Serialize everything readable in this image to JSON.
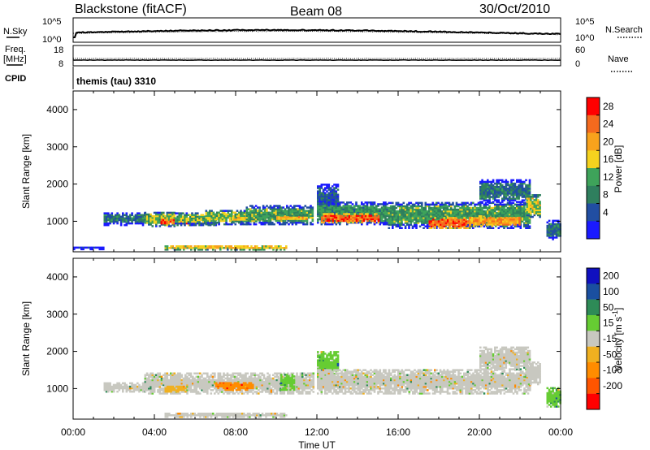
{
  "header": {
    "station": "Blackstone (fitACF)",
    "beam": "Beam 08",
    "date": "30/Oct/2010"
  },
  "status_panels": {
    "nsky_label": "N.Sky",
    "nsearch_label": "N.Search",
    "noise_ticks": [
      "10^5",
      "10^0"
    ],
    "freq_label_1": "Freq.",
    "freq_label_2": "[MHz]",
    "freq_ticks": [
      "18",
      "8"
    ],
    "nave_label": "Nave",
    "nave_ticks": [
      "60",
      "0"
    ],
    "cpid_label": "CPID",
    "cpid_value": "themis (tau) 3310"
  },
  "colors": {
    "power_scale": [
      "#1a1aff",
      "#214ea2",
      "#2f7f5e",
      "#3ea35a",
      "#f5d21e",
      "#f8a21c",
      "#f46a1e",
      "#ff0000"
    ],
    "velocity_scale": [
      "#ff0000",
      "#ff5500",
      "#ff8c00",
      "#f0b020",
      "#c8c8c0",
      "#66cc33",
      "#2e8b57",
      "#1a4fa0",
      "#1010c0"
    ],
    "ground_scatter": "#c8c8c0"
  },
  "chart_data": [
    {
      "type": "heatmap",
      "panel": "power",
      "ylabel": "Slant Range [km]",
      "ylim": [
        180,
        4500
      ],
      "yticks": [
        1000,
        2000,
        3000,
        4000
      ],
      "xlim_hours": [
        0,
        24
      ],
      "x_tick_labels": [
        "00:00",
        "04:00",
        "08:00",
        "12:00",
        "16:00",
        "20:00",
        "00:00"
      ],
      "colorbar_label": "Power [dB]",
      "colorbar_ticks": [
        "4",
        "8",
        "12",
        "16",
        "20",
        "24",
        "28"
      ],
      "colorbar_range": [
        0,
        30
      ],
      "scatter_bands": [
        {
          "t0": 0.0,
          "t1": 1.5,
          "r0": 230,
          "r1": 320,
          "level": 2
        },
        {
          "t0": 1.5,
          "t1": 3.5,
          "r0": 880,
          "r1": 1200,
          "level": 8
        },
        {
          "t0": 3.5,
          "t1": 5.0,
          "r0": 850,
          "r1": 1250,
          "level": 14
        },
        {
          "t0": 4.3,
          "t1": 5.8,
          "r0": 880,
          "r1": 1060,
          "level": 25
        },
        {
          "t0": 5.0,
          "t1": 7.0,
          "r0": 880,
          "r1": 1200,
          "level": 14
        },
        {
          "t0": 6.5,
          "t1": 8.5,
          "r0": 900,
          "r1": 1300,
          "level": 14
        },
        {
          "t0": 7.8,
          "t1": 9.5,
          "r0": 980,
          "r1": 1100,
          "level": 19
        },
        {
          "t0": 8.5,
          "t1": 11.8,
          "r0": 900,
          "r1": 1400,
          "level": 12
        },
        {
          "t0": 10.0,
          "t1": 11.5,
          "r0": 1000,
          "r1": 1150,
          "level": 19
        },
        {
          "t0": 12.0,
          "t1": 13.0,
          "r0": 1200,
          "r1": 2000,
          "level": 6
        },
        {
          "t0": 12.0,
          "t1": 15.5,
          "r0": 900,
          "r1": 1500,
          "level": 11
        },
        {
          "t0": 12.2,
          "t1": 15.0,
          "r0": 950,
          "r1": 1200,
          "level": 25
        },
        {
          "t0": 15.5,
          "t1": 22.5,
          "r0": 800,
          "r1": 1500,
          "level": 12
        },
        {
          "t0": 17.5,
          "t1": 19.5,
          "r0": 800,
          "r1": 1100,
          "level": 25
        },
        {
          "t0": 19.5,
          "t1": 22.0,
          "r0": 850,
          "r1": 1150,
          "level": 21
        },
        {
          "t0": 20.0,
          "t1": 22.5,
          "r0": 1500,
          "r1": 2100,
          "level": 8
        },
        {
          "t0": 22.3,
          "t1": 23.0,
          "r0": 1100,
          "r1": 1700,
          "level": 16
        },
        {
          "t0": 23.3,
          "t1": 24.0,
          "r0": 500,
          "r1": 1000,
          "level": 8
        },
        {
          "t0": 4.5,
          "t1": 10.5,
          "r0": 220,
          "r1": 330,
          "level": 18
        }
      ]
    },
    {
      "type": "heatmap",
      "panel": "velocity",
      "ylabel": "Slant Range [km]",
      "ylim": [
        180,
        4500
      ],
      "yticks": [
        1000,
        2000,
        3000,
        4000
      ],
      "xlim_hours": [
        0,
        24
      ],
      "x_tick_labels": [
        "00:00",
        "04:00",
        "08:00",
        "12:00",
        "16:00",
        "20:00",
        "00:00"
      ],
      "xlabel": "Time UT",
      "colorbar_label": "Velocity [m s^-1]",
      "colorbar_ticks": [
        "200",
        "100",
        "50",
        "15",
        "-15",
        "-50",
        "-100",
        "-200"
      ],
      "scatter_bands": [
        {
          "t0": 1.5,
          "t1": 3.5,
          "r0": 900,
          "r1": 1150,
          "level": 4
        },
        {
          "t0": 3.5,
          "t1": 11.8,
          "r0": 850,
          "r1": 1400,
          "level": 4
        },
        {
          "t0": 7.0,
          "t1": 8.8,
          "r0": 950,
          "r1": 1150,
          "level": 2
        },
        {
          "t0": 4.5,
          "t1": 5.5,
          "r0": 900,
          "r1": 1050,
          "level": 3
        },
        {
          "t0": 10.2,
          "t1": 10.9,
          "r0": 950,
          "r1": 1400,
          "level": 5
        },
        {
          "t0": 12.0,
          "t1": 13.0,
          "r0": 1200,
          "r1": 2000,
          "level": 5
        },
        {
          "t0": 12.0,
          "t1": 22.5,
          "r0": 850,
          "r1": 1500,
          "level": 4
        },
        {
          "t0": 20.0,
          "t1": 22.5,
          "r0": 1500,
          "r1": 2100,
          "level": 4
        },
        {
          "t0": 22.3,
          "t1": 23.0,
          "r0": 1100,
          "r1": 1700,
          "level": 4
        },
        {
          "t0": 23.3,
          "t1": 24.0,
          "r0": 500,
          "r1": 1000,
          "level": 5
        },
        {
          "t0": 4.5,
          "t1": 10.5,
          "r0": 220,
          "r1": 330,
          "level": 4
        }
      ]
    }
  ]
}
